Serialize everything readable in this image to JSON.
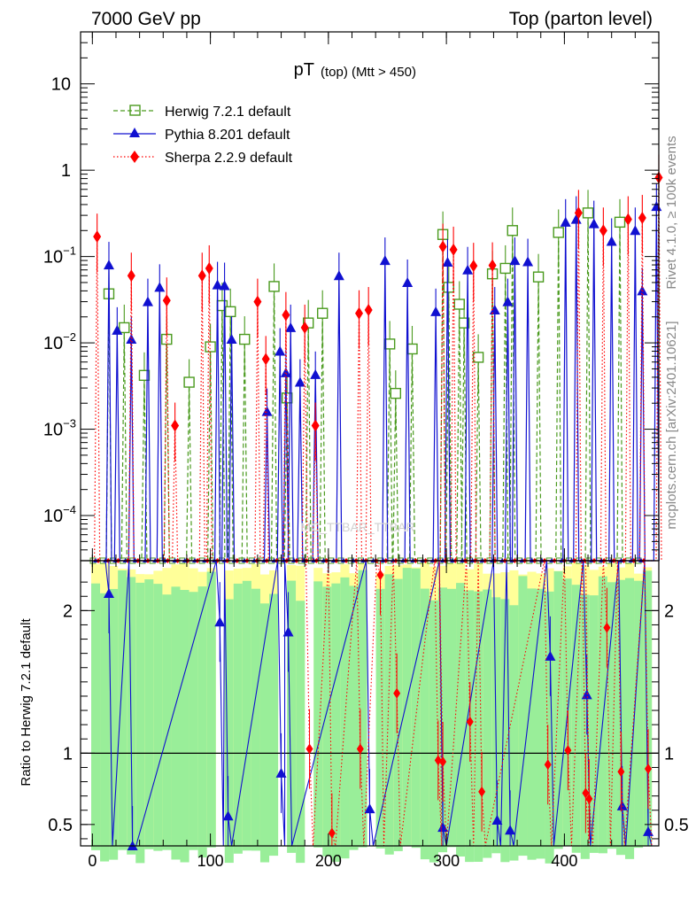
{
  "header": {
    "left": "7000 GeV pp",
    "right": "Top (parton level)"
  },
  "side_text": {
    "rivet": "Rivet 4.1.0, ≥ 100k events",
    "mcplots": "mcplots.cern.ch [arXiv:2401.10621]"
  },
  "watermark": "MC_TTBAR_TTBAR",
  "colors": {
    "herwig": "#4a9a1e",
    "pythia": "#1010d0",
    "sherpa": "#ff0000",
    "band_green": "#99ee99",
    "band_yellow": "#ffff99"
  },
  "chart_data": [
    {
      "type": "line",
      "panel": "main",
      "title": "pT (top) (Mtt > 450)",
      "title_main": "pT",
      "title_sub": "(top) (Mtt > 450)",
      "xlabel": "",
      "ylabel": "",
      "yscale": "log",
      "xlim": [
        -10,
        480
      ],
      "ylim": [
        3e-05,
        40
      ],
      "x_ticks": [
        0,
        100,
        200,
        300,
        400
      ],
      "y_ticks": [
        {
          "value": 0.0001,
          "base": "10",
          "exp": "−4"
        },
        {
          "value": 0.001,
          "base": "10",
          "exp": "−3"
        },
        {
          "value": 0.01,
          "base": "10",
          "exp": "−2"
        },
        {
          "value": 0.1,
          "base": "10",
          "exp": "−1"
        },
        {
          "value": 1,
          "base": "1",
          "exp": ""
        },
        {
          "value": 10,
          "base": "10",
          "exp": ""
        }
      ],
      "legend_position": "top-left",
      "series": [
        {
          "name": "Herwig 7.2.1 default",
          "marker": "open-square",
          "line": "dashed",
          "points": [
            {
              "x": 14,
              "y": 0.037
            },
            {
              "x": 27,
              "y": 0.015
            },
            {
              "x": 44,
              "y": 0.0042
            },
            {
              "x": 63,
              "y": 0.011
            },
            {
              "x": 82,
              "y": 0.0035
            },
            {
              "x": 100,
              "y": 0.009
            },
            {
              "x": 110,
              "y": 0.027
            },
            {
              "x": 117,
              "y": 0.023
            },
            {
              "x": 129,
              "y": 0.011
            },
            {
              "x": 154,
              "y": 0.045
            },
            {
              "x": 165,
              "y": 0.0023
            },
            {
              "x": 183,
              "y": 0.017
            },
            {
              "x": 195,
              "y": 0.022
            },
            {
              "x": 252,
              "y": 0.0097
            },
            {
              "x": 257,
              "y": 0.0026
            },
            {
              "x": 271,
              "y": 0.0085
            },
            {
              "x": 297,
              "y": 0.18
            },
            {
              "x": 302,
              "y": 0.044
            },
            {
              "x": 311,
              "y": 0.028
            },
            {
              "x": 315,
              "y": 0.017
            },
            {
              "x": 327,
              "y": 0.0068
            },
            {
              "x": 339,
              "y": 0.063
            },
            {
              "x": 350,
              "y": 0.073
            },
            {
              "x": 356,
              "y": 0.2
            },
            {
              "x": 378,
              "y": 0.058
            },
            {
              "x": 395,
              "y": 0.19
            },
            {
              "x": 420,
              "y": 0.32
            },
            {
              "x": 447,
              "y": 0.25
            }
          ]
        },
        {
          "name": "Pythia 8.201 default",
          "marker": "filled-triangle",
          "line": "solid",
          "points": [
            {
              "x": 14,
              "y": 0.08
            },
            {
              "x": 21,
              "y": 0.014
            },
            {
              "x": 33,
              "y": 0.011
            },
            {
              "x": 47,
              "y": 0.03
            },
            {
              "x": 57,
              "y": 0.044
            },
            {
              "x": 106,
              "y": 0.047
            },
            {
              "x": 112,
              "y": 0.046
            },
            {
              "x": 118,
              "y": 0.011
            },
            {
              "x": 148,
              "y": 0.0016
            },
            {
              "x": 159,
              "y": 0.008
            },
            {
              "x": 164,
              "y": 0.0045
            },
            {
              "x": 168,
              "y": 0.015
            },
            {
              "x": 176,
              "y": 0.0035
            },
            {
              "x": 189,
              "y": 0.0043
            },
            {
              "x": 209,
              "y": 0.06
            },
            {
              "x": 248,
              "y": 0.09
            },
            {
              "x": 267,
              "y": 0.05
            },
            {
              "x": 291,
              "y": 0.023
            },
            {
              "x": 301,
              "y": 0.086
            },
            {
              "x": 318,
              "y": 0.07
            },
            {
              "x": 341,
              "y": 0.024
            },
            {
              "x": 352,
              "y": 0.03
            },
            {
              "x": 358,
              "y": 0.09
            },
            {
              "x": 369,
              "y": 0.087
            },
            {
              "x": 401,
              "y": 0.25
            },
            {
              "x": 410,
              "y": 0.27
            },
            {
              "x": 425,
              "y": 0.24
            },
            {
              "x": 440,
              "y": 0.15
            },
            {
              "x": 460,
              "y": 0.2
            },
            {
              "x": 466,
              "y": 0.04
            },
            {
              "x": 478,
              "y": 0.38
            }
          ]
        },
        {
          "name": "Sherpa 2.2.9 default",
          "marker": "filled-diamond",
          "line": "dotted",
          "points": [
            {
              "x": 4,
              "y": 0.17
            },
            {
              "x": 33,
              "y": 0.06
            },
            {
              "x": 63,
              "y": 0.031
            },
            {
              "x": 70,
              "y": 0.0011
            },
            {
              "x": 93,
              "y": 0.06
            },
            {
              "x": 99,
              "y": 0.073
            },
            {
              "x": 140,
              "y": 0.03
            },
            {
              "x": 147,
              "y": 0.0065
            },
            {
              "x": 164,
              "y": 0.021
            },
            {
              "x": 180,
              "y": 0.015
            },
            {
              "x": 189,
              "y": 0.0011
            },
            {
              "x": 226,
              "y": 0.022
            },
            {
              "x": 234,
              "y": 0.024
            },
            {
              "x": 297,
              "y": 0.13
            },
            {
              "x": 306,
              "y": 0.12
            },
            {
              "x": 323,
              "y": 0.078
            },
            {
              "x": 339,
              "y": 0.079
            },
            {
              "x": 412,
              "y": 0.32
            },
            {
              "x": 433,
              "y": 0.2
            },
            {
              "x": 454,
              "y": 0.27
            },
            {
              "x": 466,
              "y": 0.28
            },
            {
              "x": 480,
              "y": 0.82
            }
          ]
        }
      ]
    },
    {
      "type": "line",
      "panel": "ratio",
      "xlabel": "",
      "ylabel": "Ratio to Herwig 7.2.1 default",
      "xlim": [
        -10,
        480
      ],
      "ylim": [
        0.35,
        2.35
      ],
      "x_ticks": [
        0,
        100,
        200,
        300,
        400
      ],
      "y_ticks": [
        0.5,
        1,
        2
      ],
      "reference_line": 1,
      "series": [
        {
          "name": "Pythia 8.201 default",
          "points": [
            {
              "x": 14,
              "y": 2.12
            },
            {
              "x": 34,
              "y": 0.35
            },
            {
              "x": 108,
              "y": 1.92
            },
            {
              "x": 115,
              "y": 0.56
            },
            {
              "x": 160,
              "y": 0.86
            },
            {
              "x": 166,
              "y": 1.85
            },
            {
              "x": 235,
              "y": 0.61
            },
            {
              "x": 297,
              "y": 0.48
            },
            {
              "x": 343,
              "y": 0.53
            },
            {
              "x": 354,
              "y": 0.46
            },
            {
              "x": 388,
              "y": 1.68
            },
            {
              "x": 419,
              "y": 1.41
            },
            {
              "x": 449,
              "y": 0.63
            },
            {
              "x": 471,
              "y": 0.45
            }
          ]
        },
        {
          "name": "Sherpa 2.2.9 default",
          "points": [
            {
              "x": 184,
              "y": 1.03
            },
            {
              "x": 203,
              "y": 0.44
            },
            {
              "x": 227,
              "y": 1.03
            },
            {
              "x": 244,
              "y": 2.25
            },
            {
              "x": 258,
              "y": 1.42
            },
            {
              "x": 293,
              "y": 0.95
            },
            {
              "x": 297,
              "y": 0.94
            },
            {
              "x": 320,
              "y": 1.22
            },
            {
              "x": 330,
              "y": 0.73
            },
            {
              "x": 386,
              "y": 0.92
            },
            {
              "x": 403,
              "y": 1.02
            },
            {
              "x": 418,
              "y": 0.72
            },
            {
              "x": 421,
              "y": 0.68
            },
            {
              "x": 436,
              "y": 1.88
            },
            {
              "x": 448,
              "y": 0.87
            },
            {
              "x": 471,
              "y": 0.89
            }
          ]
        }
      ]
    }
  ]
}
